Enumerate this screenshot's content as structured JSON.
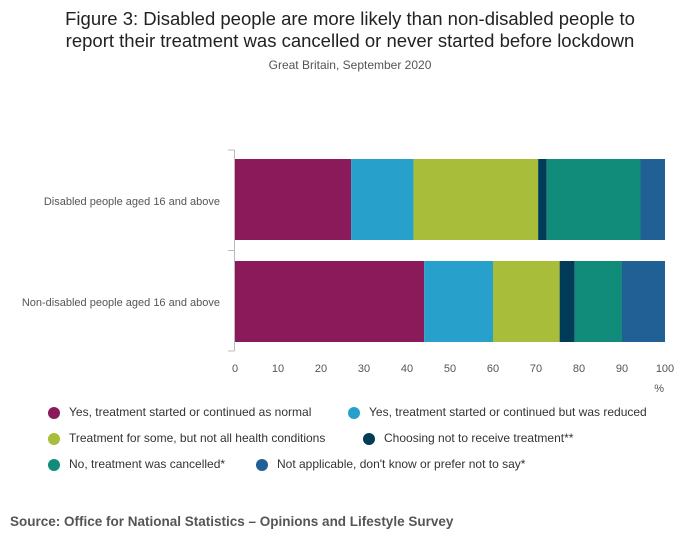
{
  "title_line1": "Figure 3: Disabled people are more likely than non-disabled people to",
  "title_line2": "report their treatment was cancelled or never started before lockdown",
  "subtitle": "Great Britain, September 2020",
  "source": "Source: Office for National Statistics – Opinions and Lifestyle Survey",
  "chart_data": {
    "type": "bar",
    "orientation": "horizontal",
    "stacked": true,
    "categories": [
      "Disabled people aged 16 and above",
      "Non-disabled people aged 16 and above"
    ],
    "series": [
      {
        "name": "Yes, treatment started or continued as normal",
        "color": "#8b1a5b",
        "values": [
          27,
          44
        ]
      },
      {
        "name": "Yes, treatment started or continued but was reduced",
        "color": "#27a0cc",
        "values": [
          14.5,
          16
        ]
      },
      {
        "name": "Treatment for some, but not all health conditions",
        "color": "#a8bd3a",
        "values": [
          29,
          15.5
        ]
      },
      {
        "name": "Choosing not to receive treatment**",
        "color": "#003c57",
        "values": [
          2,
          3.5
        ]
      },
      {
        "name": "No, treatment was cancelled*",
        "color": "#118c7b",
        "values": [
          21.8,
          11
        ]
      },
      {
        "name": "Not applicable, don't know or prefer not to say*",
        "color": "#206095",
        "values": [
          5.7,
          10
        ]
      }
    ],
    "xlim": [
      0,
      100
    ],
    "xticks": [
      "0",
      "10",
      "20",
      "30",
      "40",
      "50",
      "60",
      "70",
      "80",
      "90",
      "100"
    ],
    "xlabel": "%",
    "ylabel": "",
    "grid": false,
    "legend_position": "bottom"
  }
}
